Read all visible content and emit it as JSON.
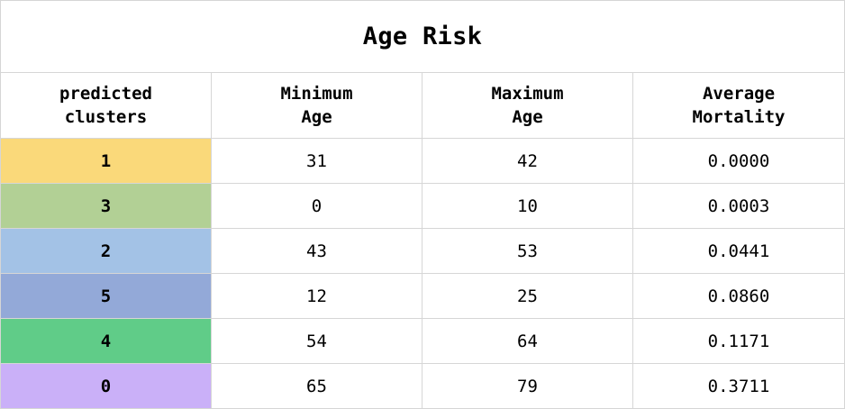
{
  "table": {
    "title": "Age Risk",
    "headers": [
      {
        "line1": "predicted",
        "line2": "clusters"
      },
      {
        "line1": "Minimum",
        "line2": "Age"
      },
      {
        "line1": "Maximum",
        "line2": "Age"
      },
      {
        "line1": "Average",
        "line2": "Mortality"
      }
    ],
    "rows": [
      {
        "cluster": "1",
        "min_age": "31",
        "max_age": "42",
        "avg_mortality": "0.0000",
        "color": "#fad97a"
      },
      {
        "cluster": "3",
        "min_age": "0",
        "max_age": "10",
        "avg_mortality": "0.0003",
        "color": "#b2d095"
      },
      {
        "cluster": "2",
        "min_age": "43",
        "max_age": "53",
        "avg_mortality": "0.0441",
        "color": "#a3c2e6"
      },
      {
        "cluster": "5",
        "min_age": "12",
        "max_age": "25",
        "avg_mortality": "0.0860",
        "color": "#93a9d8"
      },
      {
        "cluster": "4",
        "min_age": "54",
        "max_age": "64",
        "avg_mortality": "0.1171",
        "color": "#60cc88"
      },
      {
        "cluster": "0",
        "min_age": "65",
        "max_age": "79",
        "avg_mortality": "0.3711",
        "color": "#cab0f8"
      }
    ]
  }
}
